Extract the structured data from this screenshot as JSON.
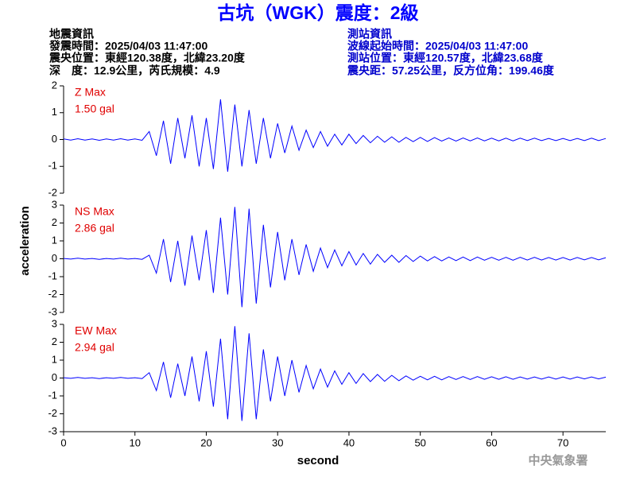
{
  "header": {
    "title": "古坑（WGK）震度：2級",
    "left": [
      "地震資訊",
      "發震時間：2025/04/03 11:47:00",
      "震央位置：東經120.38度，北緯23.20度",
      "深　度：12.9公里，芮氏規模：4.9"
    ],
    "right": [
      "測站資訊",
      "波線起始時間：2025/04/03 11:47:00",
      "測站位置：東經120.57度，北緯23.68度",
      "震央距：57.25公里，反方位角：199.46度"
    ],
    "ylabel": "acceleration",
    "xlabel": "second",
    "footer": "中央氣象署"
  },
  "chart_data": [
    {
      "type": "line",
      "annotation": "Z Max",
      "annotation_value": "1.50 gal",
      "annotation_color": "#e00000",
      "color": "#0000ff",
      "xlim": [
        0,
        76
      ],
      "ylim": [
        -2,
        2
      ],
      "yticks": [
        -2,
        -1,
        0,
        1,
        2
      ],
      "x": [
        0,
        1,
        2,
        3,
        4,
        5,
        6,
        7,
        8,
        9,
        10,
        11,
        12,
        13,
        14,
        15,
        16,
        17,
        18,
        19,
        20,
        21,
        22,
        23,
        24,
        25,
        26,
        27,
        28,
        29,
        30,
        31,
        32,
        33,
        34,
        35,
        36,
        37,
        38,
        39,
        40,
        41,
        42,
        43,
        44,
        45,
        46,
        47,
        48,
        49,
        50,
        51,
        52,
        53,
        54,
        55,
        56,
        57,
        58,
        59,
        60,
        61,
        62,
        63,
        64,
        65,
        66,
        67,
        68,
        69,
        70,
        71,
        72,
        73,
        74,
        75,
        76
      ],
      "values": [
        0.02,
        -0.02,
        0.03,
        -0.02,
        0.02,
        -0.03,
        0.02,
        -0.02,
        0.03,
        -0.02,
        0.02,
        -0.03,
        0.3,
        -0.6,
        0.7,
        -0.9,
        0.8,
        -0.7,
        0.9,
        -1.0,
        0.8,
        -1.1,
        1.5,
        -1.2,
        1.3,
        -1.0,
        1.1,
        -0.9,
        0.8,
        -0.7,
        0.6,
        -0.5,
        0.5,
        -0.4,
        0.35,
        -0.3,
        0.3,
        -0.25,
        0.2,
        -0.2,
        0.2,
        -0.15,
        0.15,
        -0.12,
        0.12,
        -0.1,
        0.1,
        -0.1,
        0.08,
        -0.08,
        0.08,
        -0.07,
        0.07,
        -0.06,
        0.06,
        -0.06,
        0.06,
        -0.05,
        0.06,
        -0.05,
        0.05,
        -0.05,
        0.05,
        -0.05,
        0.05,
        -0.04,
        0.05,
        -0.04,
        0.04,
        -0.04,
        0.04,
        -0.04,
        0.04,
        -0.04,
        0.05,
        -0.04,
        0.04
      ]
    },
    {
      "type": "line",
      "annotation": "NS Max",
      "annotation_value": "2.86 gal",
      "annotation_color": "#e00000",
      "color": "#0000ff",
      "xlim": [
        0,
        76
      ],
      "ylim": [
        -3,
        3
      ],
      "yticks": [
        -3,
        -2,
        -1,
        0,
        1,
        2,
        3
      ],
      "x": [
        0,
        1,
        2,
        3,
        4,
        5,
        6,
        7,
        8,
        9,
        10,
        11,
        12,
        13,
        14,
        15,
        16,
        17,
        18,
        19,
        20,
        21,
        22,
        23,
        24,
        25,
        26,
        27,
        28,
        29,
        30,
        31,
        32,
        33,
        34,
        35,
        36,
        37,
        38,
        39,
        40,
        41,
        42,
        43,
        44,
        45,
        46,
        47,
        48,
        49,
        50,
        51,
        52,
        53,
        54,
        55,
        56,
        57,
        58,
        59,
        60,
        61,
        62,
        63,
        64,
        65,
        66,
        67,
        68,
        69,
        70,
        71,
        72,
        73,
        74,
        75,
        76
      ],
      "values": [
        0.02,
        -0.02,
        0.03,
        -0.02,
        0.02,
        -0.03,
        0.02,
        -0.02,
        0.03,
        -0.02,
        0.02,
        -0.03,
        0.2,
        -0.8,
        1.1,
        -1.3,
        1.0,
        -1.5,
        1.3,
        -1.2,
        1.6,
        -1.9,
        2.3,
        -2.0,
        2.9,
        -2.7,
        2.8,
        -2.5,
        1.9,
        -1.6,
        1.5,
        -1.2,
        1.1,
        -0.9,
        0.8,
        -0.7,
        0.6,
        -0.5,
        0.5,
        -0.4,
        0.4,
        -0.35,
        0.3,
        -0.3,
        0.25,
        -0.2,
        0.2,
        -0.2,
        0.18,
        -0.15,
        0.15,
        -0.12,
        0.12,
        -0.12,
        0.1,
        -0.1,
        0.1,
        -0.1,
        0.1,
        -0.08,
        0.08,
        -0.08,
        0.08,
        -0.08,
        0.08,
        -0.07,
        0.08,
        -0.07,
        0.07,
        -0.07,
        0.07,
        -0.07,
        0.07,
        -0.06,
        0.07,
        -0.06,
        0.06
      ]
    },
    {
      "type": "line",
      "annotation": "EW Max",
      "annotation_value": "2.94 gal",
      "annotation_color": "#e00000",
      "color": "#0000ff",
      "xlim": [
        0,
        76
      ],
      "ylim": [
        -3,
        3
      ],
      "yticks": [
        -3,
        -2,
        -1,
        0,
        1,
        2,
        3
      ],
      "xticks": [
        0,
        10,
        20,
        30,
        40,
        50,
        60,
        70
      ],
      "x": [
        0,
        1,
        2,
        3,
        4,
        5,
        6,
        7,
        8,
        9,
        10,
        11,
        12,
        13,
        14,
        15,
        16,
        17,
        18,
        19,
        20,
        21,
        22,
        23,
        24,
        25,
        26,
        27,
        28,
        29,
        30,
        31,
        32,
        33,
        34,
        35,
        36,
        37,
        38,
        39,
        40,
        41,
        42,
        43,
        44,
        45,
        46,
        47,
        48,
        49,
        50,
        51,
        52,
        53,
        54,
        55,
        56,
        57,
        58,
        59,
        60,
        61,
        62,
        63,
        64,
        65,
        66,
        67,
        68,
        69,
        70,
        71,
        72,
        73,
        74,
        75,
        76
      ],
      "values": [
        0.02,
        -0.02,
        0.03,
        -0.02,
        0.02,
        -0.03,
        0.02,
        -0.02,
        0.03,
        -0.02,
        0.02,
        -0.03,
        0.3,
        -0.7,
        0.9,
        -1.1,
        0.8,
        -1.0,
        1.2,
        -1.3,
        1.5,
        -1.6,
        2.2,
        -2.3,
        2.9,
        -2.4,
        2.5,
        -2.3,
        1.6,
        -1.3,
        1.2,
        -1.0,
        1.0,
        -0.8,
        0.7,
        -0.6,
        0.5,
        -0.5,
        0.4,
        -0.35,
        0.3,
        -0.3,
        0.25,
        -0.2,
        0.2,
        -0.18,
        0.15,
        -0.15,
        0.12,
        -0.12,
        0.1,
        -0.1,
        0.1,
        -0.1,
        0.08,
        -0.08,
        0.08,
        -0.08,
        0.08,
        -0.07,
        0.07,
        -0.07,
        0.07,
        -0.07,
        0.06,
        -0.06,
        0.06,
        -0.06,
        0.06,
        -0.06,
        0.06,
        -0.06,
        0.06,
        -0.05,
        0.06,
        -0.05,
        0.05
      ]
    }
  ]
}
